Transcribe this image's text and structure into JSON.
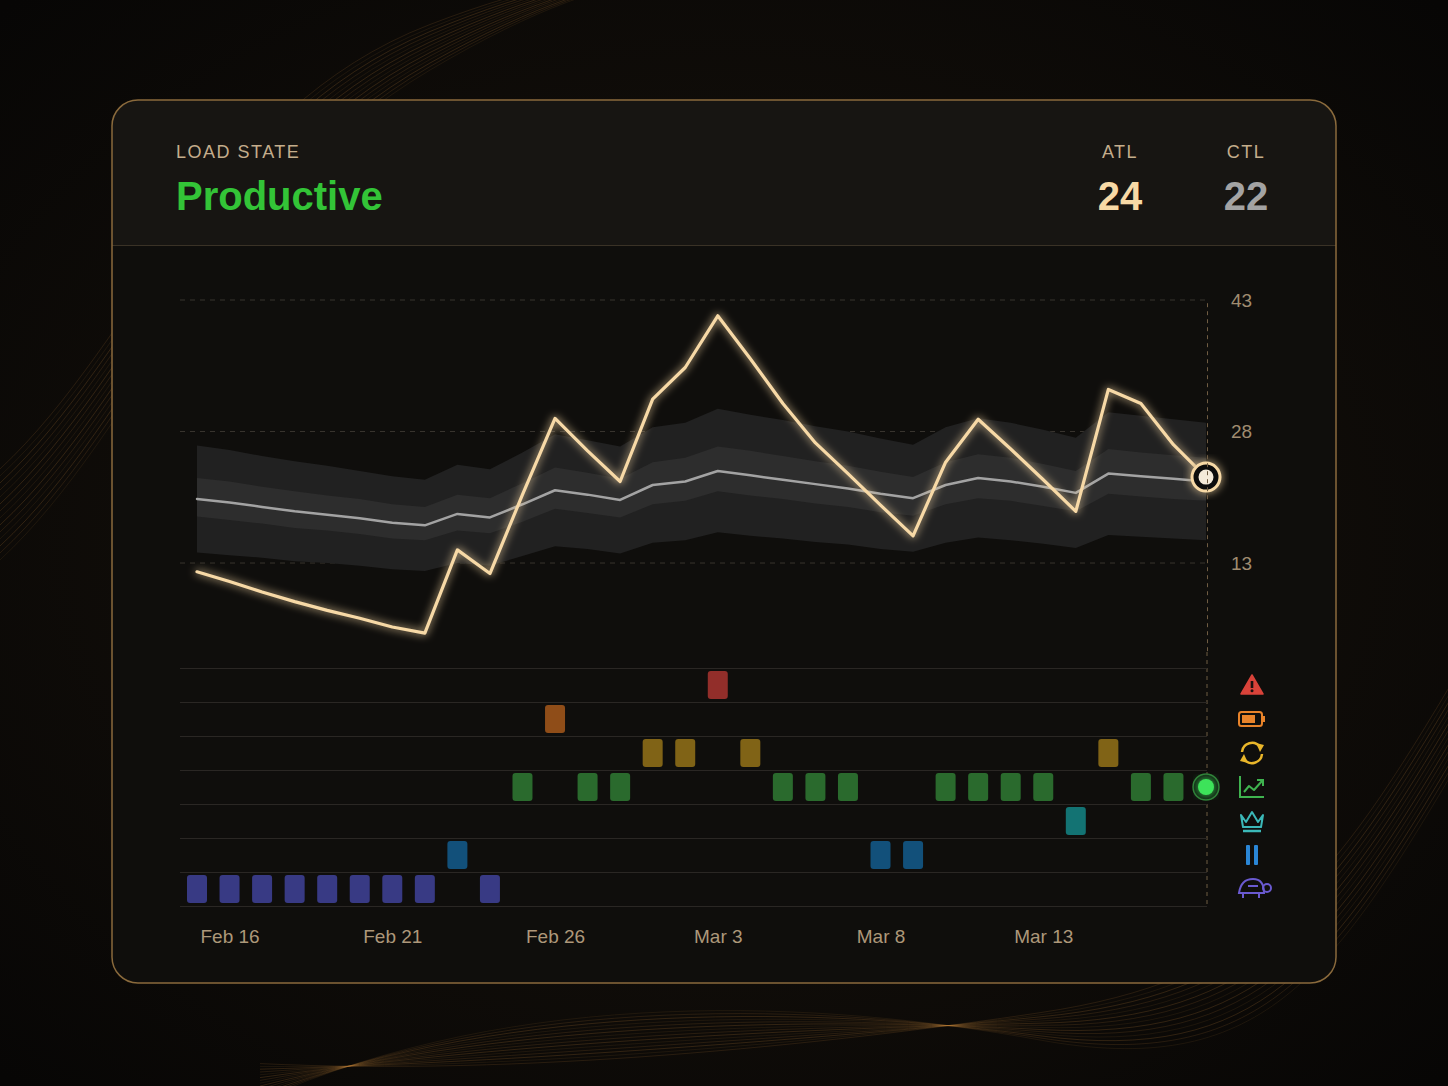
{
  "chart_data": {
    "type": "line",
    "status": {
      "label": "LOAD STATE",
      "text": "Productive",
      "color": "#33c437"
    },
    "categories": [
      null,
      "Feb 16",
      null,
      null,
      null,
      null,
      "Feb 21",
      null,
      null,
      null,
      null,
      "Feb 26",
      null,
      null,
      null,
      null,
      "Mar 3",
      null,
      null,
      null,
      null,
      "Mar 8",
      null,
      null,
      null,
      null,
      "Mar 13",
      null,
      null,
      null,
      null,
      null
    ],
    "ylim": [
      3,
      43
    ],
    "yticks": [
      13,
      28,
      43
    ],
    "grid": true,
    "series": [
      {
        "name": "ATL",
        "current": 24,
        "color": "#f7d9a6",
        "values": [
          12.0,
          10.9,
          9.7,
          8.6,
          7.6,
          6.7,
          5.7,
          5.0,
          14.5,
          11.8,
          20.8,
          29.5,
          25.8,
          22.3,
          31.7,
          35.3,
          41.2,
          36.3,
          31.2,
          26.7,
          23.2,
          19.6,
          16.1,
          24.5,
          29.4,
          26.0,
          22.5,
          18.9,
          32.8,
          31.2,
          26.5,
          22.8
        ]
      },
      {
        "name": "CTL",
        "current": 22,
        "color": "#a3a3a3",
        "values": [
          20.3,
          19.9,
          19.4,
          18.9,
          18.5,
          18.1,
          17.6,
          17.3,
          18.6,
          18.2,
          19.7,
          21.3,
          20.8,
          20.2,
          21.9,
          22.3,
          23.5,
          23.0,
          22.5,
          22.0,
          21.5,
          20.9,
          20.4,
          21.9,
          22.7,
          22.3,
          21.7,
          21.0,
          23.2,
          22.9,
          22.6,
          22.3
        ]
      }
    ],
    "bands": [
      {
        "color": "#212121",
        "high": [
          26.4,
          25.9,
          25.2,
          24.6,
          24.1,
          23.5,
          22.9,
          22.5,
          24.2,
          23.7,
          25.6,
          27.7,
          27.0,
          26.3,
          28.5,
          29.0,
          30.6,
          29.9,
          29.3,
          28.6,
          28.0,
          27.2,
          26.5,
          28.5,
          29.5,
          29.0,
          28.2,
          27.3,
          30.2,
          29.8,
          29.4,
          29.0
        ],
        "low": [
          14.2,
          13.9,
          13.6,
          13.2,
          13.0,
          12.7,
          12.3,
          12.1,
          13.0,
          12.7,
          13.8,
          14.9,
          14.6,
          14.1,
          15.3,
          15.6,
          16.5,
          16.1,
          15.8,
          15.4,
          15.1,
          14.6,
          14.3,
          15.3,
          15.9,
          15.6,
          15.2,
          14.7,
          16.2,
          16.0,
          15.8,
          15.6
        ]
      },
      {
        "color": "#2d2d2d",
        "high": [
          22.7,
          22.3,
          21.7,
          21.2,
          20.7,
          20.3,
          19.7,
          19.4,
          20.8,
          20.4,
          22.1,
          23.9,
          23.3,
          22.6,
          24.5,
          25.0,
          26.3,
          25.8,
          25.2,
          24.6,
          24.1,
          23.4,
          22.8,
          24.5,
          25.4,
          25.0,
          24.3,
          23.5,
          26.0,
          25.6,
          25.3,
          25.0
        ],
        "low": [
          18.3,
          17.9,
          17.5,
          17.0,
          16.7,
          16.3,
          15.8,
          15.6,
          16.7,
          16.4,
          17.7,
          19.2,
          18.7,
          18.2,
          19.7,
          20.1,
          21.2,
          20.7,
          20.3,
          19.8,
          19.4,
          18.8,
          18.4,
          19.7,
          20.4,
          20.1,
          19.5,
          18.9,
          20.9,
          20.6,
          20.3,
          20.1
        ]
      }
    ],
    "events": {
      "series": [
        {
          "color": "#922e2a",
          "values": [
            null,
            null,
            null,
            null,
            null,
            null,
            null,
            null,
            null,
            null,
            null,
            null,
            null,
            null,
            null,
            null,
            1,
            null,
            null,
            null,
            null,
            null,
            null,
            null,
            null,
            null,
            null,
            null,
            null,
            null,
            null,
            null
          ]
        },
        {
          "color": "#8f4d18",
          "values": [
            null,
            null,
            null,
            null,
            null,
            null,
            null,
            null,
            null,
            null,
            null,
            1,
            null,
            null,
            null,
            null,
            null,
            null,
            null,
            null,
            null,
            null,
            null,
            null,
            null,
            null,
            null,
            null,
            null,
            null,
            null,
            null
          ]
        },
        {
          "color": "#806316",
          "values": [
            null,
            null,
            null,
            null,
            null,
            null,
            null,
            null,
            null,
            null,
            null,
            null,
            null,
            null,
            1,
            1,
            null,
            1,
            null,
            null,
            null,
            null,
            null,
            null,
            null,
            null,
            null,
            null,
            1,
            null,
            null,
            null
          ]
        },
        {
          "color": "#2a6a2d",
          "values": [
            null,
            null,
            null,
            null,
            null,
            null,
            null,
            null,
            null,
            null,
            1,
            null,
            1,
            1,
            null,
            null,
            null,
            null,
            1,
            1,
            1,
            null,
            null,
            1,
            1,
            1,
            1,
            null,
            null,
            1,
            1,
            1
          ]
        },
        {
          "color": "#137373",
          "values": [
            null,
            null,
            null,
            null,
            null,
            null,
            null,
            null,
            null,
            null,
            null,
            null,
            null,
            null,
            null,
            null,
            null,
            null,
            null,
            null,
            null,
            null,
            null,
            null,
            null,
            null,
            null,
            1,
            null,
            null,
            null,
            null
          ]
        },
        {
          "color": "#12507a",
          "values": [
            null,
            null,
            null,
            null,
            null,
            null,
            null,
            null,
            1,
            null,
            null,
            null,
            null,
            null,
            null,
            null,
            null,
            null,
            null,
            null,
            null,
            1,
            1,
            null,
            null,
            null,
            null,
            null,
            null,
            null,
            null,
            null
          ]
        },
        {
          "color": "#383a84",
          "values": [
            1,
            1,
            1,
            1,
            1,
            1,
            1,
            1,
            null,
            1,
            null,
            null,
            null,
            null,
            null,
            null,
            null,
            null,
            null,
            null,
            null,
            null,
            null,
            null,
            null,
            null,
            null,
            null,
            null,
            null,
            null,
            null
          ]
        }
      ]
    }
  }
}
